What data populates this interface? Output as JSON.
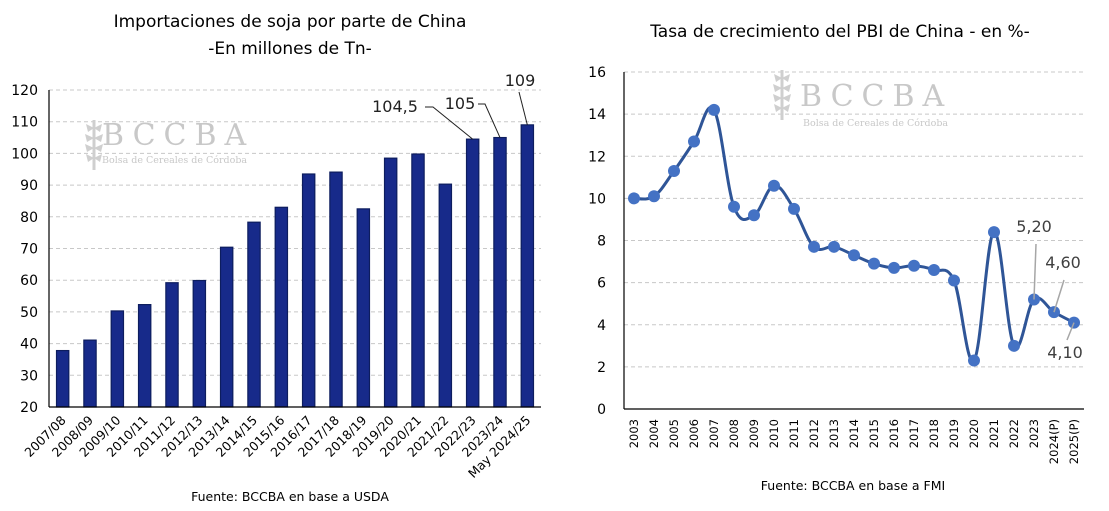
{
  "chart_data": [
    {
      "type": "bar",
      "title": "Importaciones de soja por parte de China",
      "subtitle": "-En millones de Tn-",
      "xlabel": "",
      "ylabel": "",
      "ylim": [
        20,
        120
      ],
      "yticks": [
        20,
        30,
        40,
        50,
        60,
        70,
        80,
        90,
        100,
        110,
        120
      ],
      "grid": true,
      "categories": [
        "2007/08",
        "2008/09",
        "2009/10",
        "2010/11",
        "2011/12",
        "2012/13",
        "2013/14",
        "2014/15",
        "2015/16",
        "2016/17",
        "2017/18",
        "2018/19",
        "2019/20",
        "2020/21",
        "2021/22",
        "2022/23",
        "2023/24",
        "May 2024/25"
      ],
      "values": [
        37.8,
        41.1,
        50.3,
        52.3,
        59.2,
        59.9,
        70.4,
        78.3,
        83.0,
        93.5,
        94.1,
        82.5,
        98.5,
        99.8,
        90.3,
        104.5,
        105,
        109
      ],
      "data_labels": [
        {
          "category": "2022/23",
          "text": "104,5"
        },
        {
          "category": "2023/24",
          "text": "105"
        },
        {
          "category": "May 2024/25",
          "text": "109"
        }
      ],
      "bar_color": "#172a8a",
      "source": "Fuente: BCCBA en base a USDA",
      "watermark": {
        "brand": "BCCBA",
        "name": "Bolsa de Cereales de Córdoba"
      }
    },
    {
      "type": "line",
      "title": "Tasa de crecimiento del PBI de China - en %-",
      "xlabel": "",
      "ylabel": "",
      "ylim": [
        0,
        16
      ],
      "yticks": [
        0,
        2,
        4,
        6,
        8,
        10,
        12,
        14,
        16
      ],
      "grid": true,
      "x": [
        "2003",
        "2004",
        "2005",
        "2006",
        "2007",
        "2008",
        "2009",
        "2010",
        "2011",
        "2012",
        "2013",
        "2014",
        "2015",
        "2016",
        "2017",
        "2018",
        "2019",
        "2020",
        "2021",
        "2022",
        "2023",
        "2024(P)",
        "2025(P)"
      ],
      "series": [
        {
          "name": "PBI China",
          "values": [
            10.0,
            10.1,
            11.3,
            12.7,
            14.2,
            9.6,
            9.2,
            10.6,
            9.5,
            7.7,
            7.7,
            7.3,
            6.9,
            6.7,
            6.8,
            6.6,
            6.1,
            2.3,
            8.4,
            3.0,
            5.2,
            4.6,
            4.1
          ],
          "color": "#4472c4",
          "line_color": "#2f5597"
        }
      ],
      "data_labels": [
        {
          "x": "2023",
          "text": "5,20"
        },
        {
          "x": "2024(P)",
          "text": "4,60"
        },
        {
          "x": "2025(P)",
          "text": "4,10"
        }
      ],
      "source": "Fuente: BCCBA en base a FMI",
      "watermark": {
        "brand": "BCCBA",
        "name": "Bolsa de Cereales de Córdoba"
      }
    }
  ]
}
